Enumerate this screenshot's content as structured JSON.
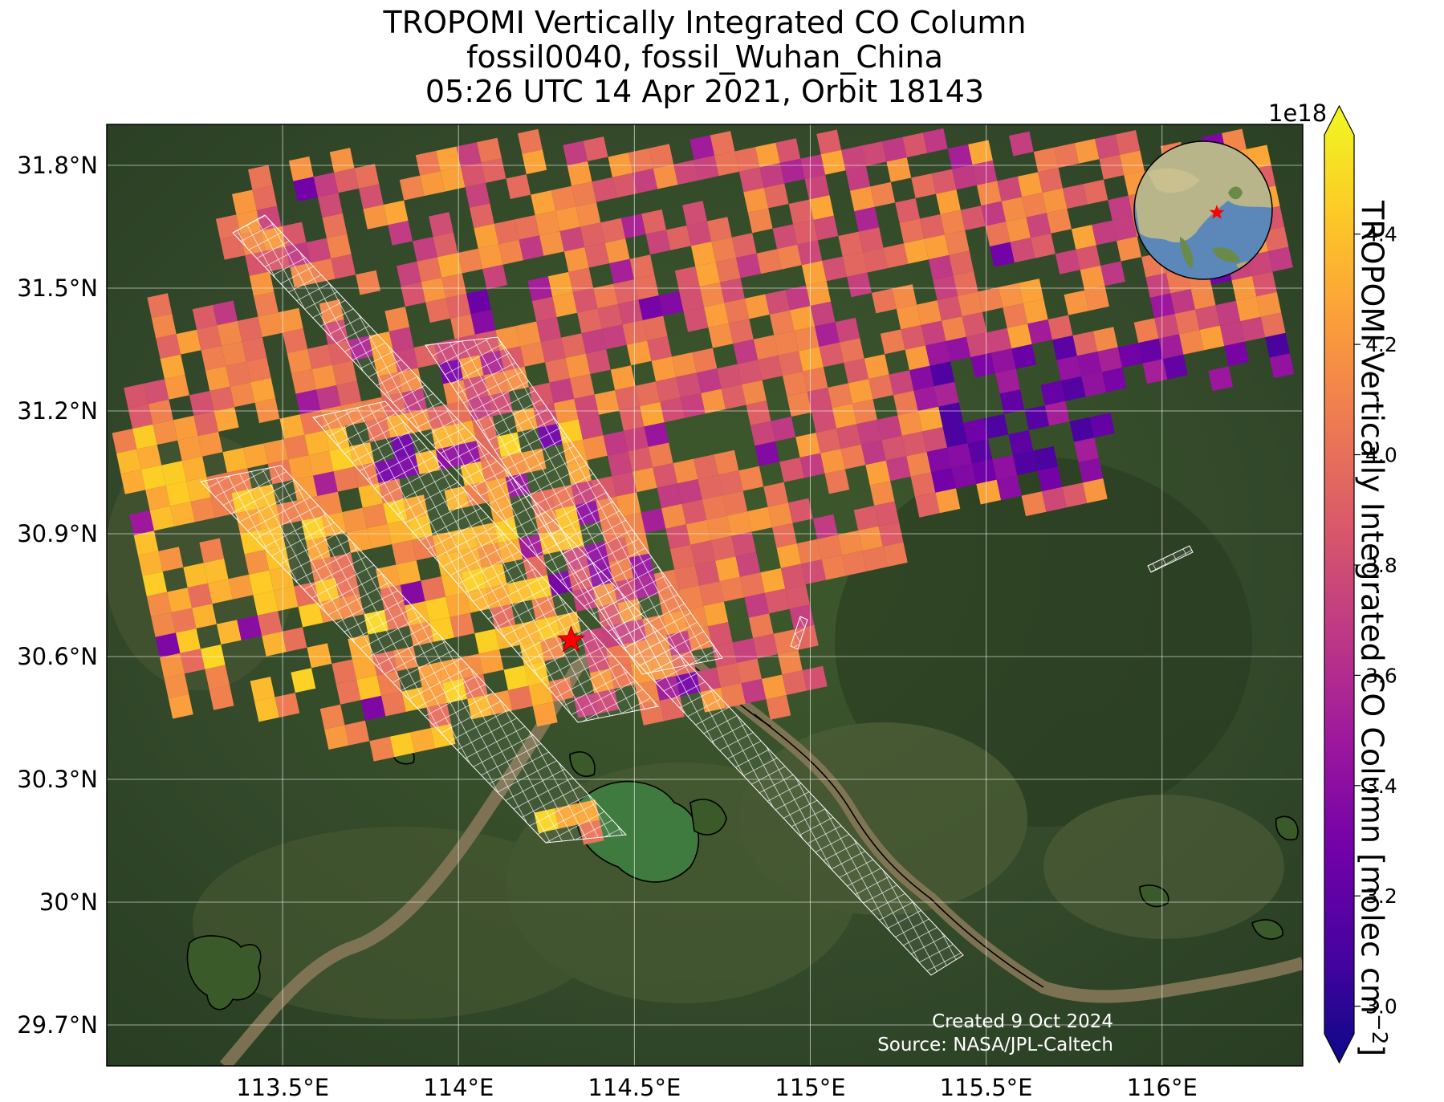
{
  "title": {
    "line1": "TROPOMI Vertically Integrated CO Column",
    "line2": "fossil0040, fossil_Wuhan_China",
    "line3": "05:26 UTC 14 Apr 2021, Orbit 18143"
  },
  "map": {
    "extent": {
      "lon_min": 113.0,
      "lon_max": 116.4,
      "lat_min": 29.6,
      "lat_max": 31.9
    },
    "lon_ticks": [
      113.5,
      114.0,
      114.5,
      115.0,
      115.5,
      116.0
    ],
    "lon_tick_labels": [
      "113.5°E",
      "114°E",
      "114.5°E",
      "115°E",
      "115.5°E",
      "116°E"
    ],
    "lat_ticks": [
      29.7,
      30.0,
      30.3,
      30.6,
      30.9,
      31.2,
      31.5,
      31.8
    ],
    "lat_tick_labels": [
      "29.7°N",
      "30°N",
      "30.3°N",
      "30.6°N",
      "30.9°N",
      "31.2°N",
      "31.5°N",
      "31.8°N"
    ],
    "gridlines": true,
    "basemap": "satellite imagery",
    "target_marker": {
      "lon": 114.32,
      "lat": 30.64,
      "symbol": "red-star"
    },
    "inset_globe": {
      "position": "top-right",
      "shows": "Asia",
      "marker": "red-star"
    },
    "credit": {
      "created": "Created 9 Oct 2024",
      "source": "Source: NASA/JPL-Caltech"
    }
  },
  "colorbar": {
    "label": "TROPOMI Vertically Integrated CO Column [molec cm",
    "label_sup": "−2",
    "label_end": "]",
    "exponent": "1e18",
    "min": 2.95,
    "max": 4.58,
    "ticks": [
      3.0,
      3.2,
      3.4,
      3.6,
      3.8,
      4.0,
      4.2,
      4.4
    ],
    "tick_labels": [
      "3.0",
      "3.2",
      "3.4",
      "3.6",
      "3.8",
      "4.0",
      "4.2",
      "4.4"
    ],
    "colormap": "plasma",
    "extend": "both"
  },
  "colors": {
    "plasma_stops": [
      "#0d0887",
      "#46039f",
      "#7201a8",
      "#9c179e",
      "#bd3786",
      "#d8576b",
      "#ed7953",
      "#fb9f3a",
      "#fdca26",
      "#f0f921"
    ]
  }
}
